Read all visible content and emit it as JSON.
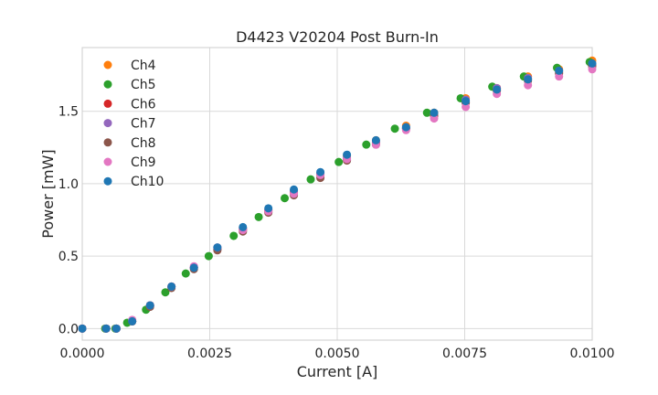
{
  "chart_data": {
    "type": "scatter",
    "title": "D4423 V20204 Post Burn-In",
    "xlabel": "Current [A]",
    "ylabel": "Power [mW]",
    "xlim": [
      0,
      0.01
    ],
    "ylim": [
      -0.08,
      1.94
    ],
    "xticks": [
      "0.0000",
      "0.0025",
      "0.0050",
      "0.0075",
      "0.0100"
    ],
    "xtick_values": [
      0,
      0.0025,
      0.005,
      0.0075,
      0.01
    ],
    "yticks": [
      "0.0",
      "0.5",
      "1.0",
      "1.5"
    ],
    "ytick_values": [
      0,
      0.5,
      1.0,
      1.5
    ],
    "grid": true,
    "legend_position": "top-left",
    "series": [
      {
        "name": "Ch4",
        "color": "#ff7f0e",
        "x": [
          0,
          0.00047,
          0.00067,
          0.00098,
          0.00133,
          0.00175,
          0.00219,
          0.00265,
          0.00315,
          0.00365,
          0.00415,
          0.00467,
          0.00519,
          0.00576,
          0.00635,
          0.0069,
          0.00752,
          0.00813,
          0.00874,
          0.00935,
          0.01
        ],
        "y": [
          0,
          0,
          0,
          0.05,
          0.16,
          0.29,
          0.42,
          0.55,
          0.69,
          0.82,
          0.95,
          1.07,
          1.19,
          1.3,
          1.4,
          1.49,
          1.59,
          1.66,
          1.74,
          1.79,
          1.85
        ]
      },
      {
        "name": "Ch5",
        "color": "#2ca02c",
        "x": [
          0,
          0.00045,
          0.00065,
          0.00088,
          0.00125,
          0.00163,
          0.00203,
          0.00248,
          0.00297,
          0.00346,
          0.00397,
          0.00448,
          0.00503,
          0.00557,
          0.00613,
          0.00676,
          0.00742,
          0.00804,
          0.00866,
          0.00931,
          0.00995
        ],
        "y": [
          0,
          0,
          0,
          0.04,
          0.13,
          0.25,
          0.38,
          0.5,
          0.64,
          0.77,
          0.9,
          1.03,
          1.15,
          1.27,
          1.38,
          1.49,
          1.59,
          1.67,
          1.74,
          1.8,
          1.84
        ]
      },
      {
        "name": "Ch6",
        "color": "#d62728",
        "x": [
          0,
          0.00047,
          0.00067,
          0.00098,
          0.00133,
          0.00175,
          0.00219,
          0.00265,
          0.00315,
          0.00365,
          0.00415,
          0.00467,
          0.00519,
          0.00576,
          0.00635,
          0.0069,
          0.00752,
          0.00813,
          0.00874,
          0.00935,
          0.01
        ],
        "y": [
          0,
          0,
          0,
          0.05,
          0.16,
          0.29,
          0.42,
          0.55,
          0.68,
          0.81,
          0.94,
          1.06,
          1.17,
          1.28,
          1.38,
          1.47,
          1.56,
          1.65,
          1.72,
          1.77,
          1.82
        ]
      },
      {
        "name": "Ch7",
        "color": "#9467bd",
        "x": [
          0,
          0.00047,
          0.00067,
          0.00098,
          0.00133,
          0.00175,
          0.00219,
          0.00265,
          0.00315,
          0.00365,
          0.00415,
          0.00467,
          0.00519,
          0.00576,
          0.00635,
          0.0069,
          0.00752,
          0.00813,
          0.00874,
          0.00935,
          0.01
        ],
        "y": [
          0,
          0,
          0,
          0.05,
          0.16,
          0.29,
          0.42,
          0.55,
          0.69,
          0.82,
          0.95,
          1.07,
          1.18,
          1.29,
          1.39,
          1.48,
          1.58,
          1.66,
          1.73,
          1.78,
          1.83
        ]
      },
      {
        "name": "Ch8",
        "color": "#8c564b",
        "x": [
          0,
          0.00047,
          0.00067,
          0.00098,
          0.00133,
          0.00175,
          0.00219,
          0.00265,
          0.00315,
          0.00365,
          0.00415,
          0.00467,
          0.00519,
          0.00576,
          0.00635,
          0.0069,
          0.00752,
          0.00813,
          0.00874,
          0.00935,
          0.01
        ],
        "y": [
          0,
          0,
          0,
          0.05,
          0.15,
          0.28,
          0.41,
          0.54,
          0.67,
          0.8,
          0.92,
          1.04,
          1.16,
          1.27,
          1.38,
          1.47,
          1.56,
          1.64,
          1.71,
          1.76,
          1.81
        ]
      },
      {
        "name": "Ch9",
        "color": "#e377c2",
        "x": [
          0,
          0.00047,
          0.00067,
          0.00098,
          0.00133,
          0.00175,
          0.00219,
          0.00265,
          0.00315,
          0.00365,
          0.00415,
          0.00467,
          0.00519,
          0.00576,
          0.00635,
          0.0069,
          0.00752,
          0.00813,
          0.00874,
          0.00935,
          0.01
        ],
        "y": [
          0,
          0,
          0,
          0.06,
          0.16,
          0.29,
          0.43,
          0.56,
          0.68,
          0.81,
          0.93,
          1.06,
          1.17,
          1.27,
          1.37,
          1.45,
          1.53,
          1.62,
          1.68,
          1.74,
          1.79
        ]
      },
      {
        "name": "Ch10",
        "color": "#1f77b4",
        "x": [
          0,
          0.00047,
          0.00067,
          0.00098,
          0.00133,
          0.00175,
          0.00219,
          0.00265,
          0.00315,
          0.00365,
          0.00415,
          0.00467,
          0.00519,
          0.00576,
          0.00635,
          0.0069,
          0.00752,
          0.00813,
          0.00874,
          0.00935,
          0.01
        ],
        "y": [
          0,
          0,
          0,
          0.05,
          0.16,
          0.29,
          0.42,
          0.56,
          0.7,
          0.83,
          0.96,
          1.08,
          1.2,
          1.3,
          1.39,
          1.49,
          1.57,
          1.65,
          1.72,
          1.78,
          1.83
        ]
      }
    ]
  }
}
